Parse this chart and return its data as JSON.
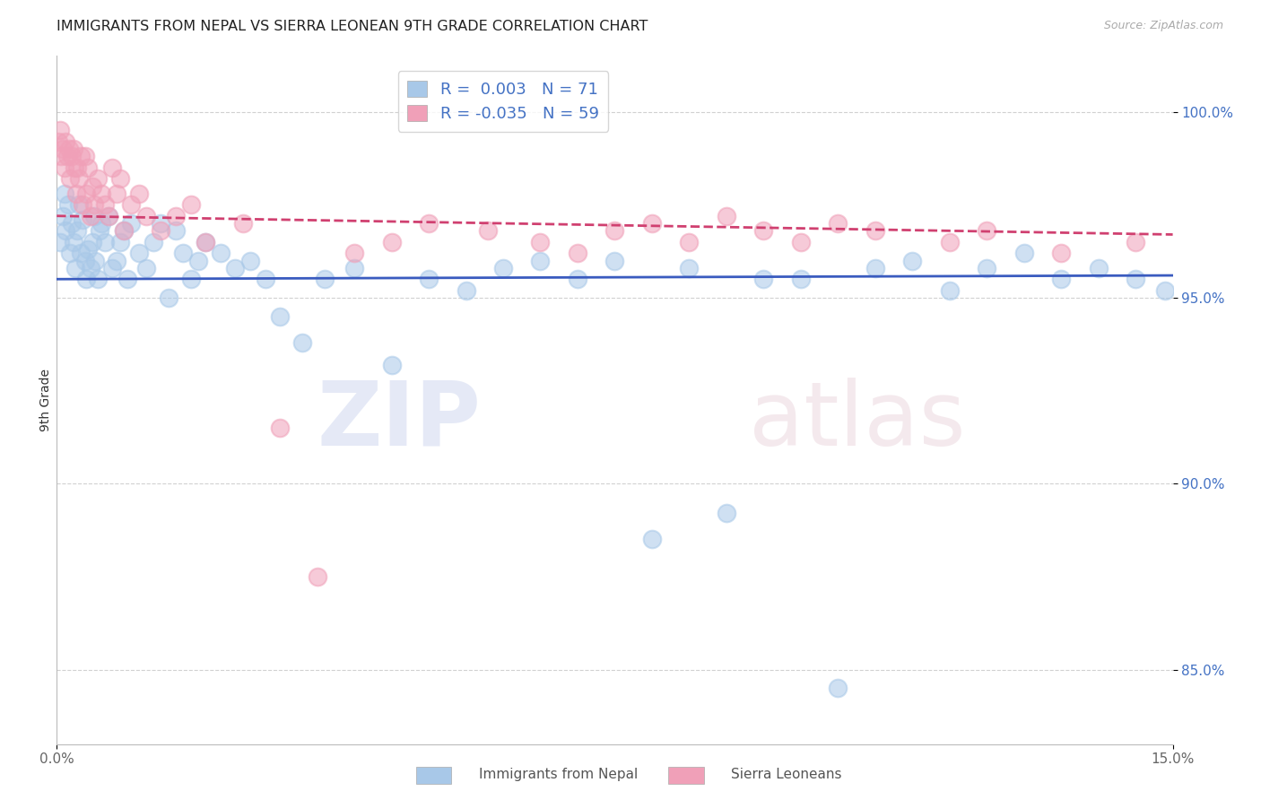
{
  "title": "IMMIGRANTS FROM NEPAL VS SIERRA LEONEAN 9TH GRADE CORRELATION CHART",
  "source_text": "Source: ZipAtlas.com",
  "ylabel": "9th Grade",
  "xlim": [
    0.0,
    15.0
  ],
  "ylim": [
    83.0,
    101.5
  ],
  "x_ticks": [
    0.0,
    15.0
  ],
  "x_tick_labels": [
    "0.0%",
    "15.0%"
  ],
  "y_ticks": [
    85.0,
    90.0,
    95.0,
    100.0
  ],
  "y_tick_labels": [
    "85.0%",
    "90.0%",
    "95.0%",
    "100.0%"
  ],
  "nepal_color": "#a8c8e8",
  "sierra_color": "#f0a0b8",
  "nepal_R": 0.003,
  "nepal_N": 71,
  "sierra_R": -0.035,
  "sierra_N": 59,
  "nepal_line_color": "#3a5bbf",
  "sierra_line_color": "#d04070",
  "legend_label_nepal": "Immigrants from Nepal",
  "legend_label_sierra": "Sierra Leoneans",
  "watermark_zip": "ZIP",
  "watermark_atlas": "atlas",
  "nepal_x": [
    0.05,
    0.08,
    0.1,
    0.12,
    0.15,
    0.18,
    0.2,
    0.22,
    0.25,
    0.28,
    0.3,
    0.32,
    0.35,
    0.38,
    0.4,
    0.42,
    0.45,
    0.48,
    0.5,
    0.52,
    0.55,
    0.58,
    0.6,
    0.65,
    0.7,
    0.75,
    0.8,
    0.85,
    0.9,
    0.95,
    1.0,
    1.1,
    1.2,
    1.3,
    1.4,
    1.5,
    1.6,
    1.7,
    1.8,
    1.9,
    2.0,
    2.2,
    2.4,
    2.6,
    2.8,
    3.0,
    3.3,
    3.6,
    4.0,
    4.5,
    5.0,
    5.5,
    6.0,
    6.5,
    7.0,
    7.5,
    8.0,
    8.5,
    9.0,
    9.5,
    10.0,
    10.5,
    11.0,
    11.5,
    12.0,
    12.5,
    13.0,
    13.5,
    14.0,
    14.5,
    14.9
  ],
  "nepal_y": [
    96.5,
    97.2,
    97.8,
    96.8,
    97.5,
    96.2,
    97.0,
    96.5,
    95.8,
    96.8,
    97.5,
    96.2,
    97.1,
    96.0,
    95.5,
    96.3,
    95.8,
    96.5,
    97.2,
    96.0,
    95.5,
    96.8,
    97.0,
    96.5,
    97.2,
    95.8,
    96.0,
    96.5,
    96.8,
    95.5,
    97.0,
    96.2,
    95.8,
    96.5,
    97.0,
    95.0,
    96.8,
    96.2,
    95.5,
    96.0,
    96.5,
    96.2,
    95.8,
    96.0,
    95.5,
    94.5,
    93.8,
    95.5,
    95.8,
    93.2,
    95.5,
    95.2,
    95.8,
    96.0,
    95.5,
    96.0,
    88.5,
    95.8,
    89.2,
    95.5,
    95.5,
    84.5,
    95.8,
    96.0,
    95.2,
    95.8,
    96.2,
    95.5,
    95.8,
    95.5,
    95.2
  ],
  "sierra_x": [
    0.02,
    0.04,
    0.06,
    0.08,
    0.1,
    0.12,
    0.14,
    0.16,
    0.18,
    0.2,
    0.22,
    0.24,
    0.26,
    0.28,
    0.3,
    0.32,
    0.35,
    0.38,
    0.4,
    0.42,
    0.45,
    0.48,
    0.5,
    0.55,
    0.6,
    0.65,
    0.7,
    0.75,
    0.8,
    0.85,
    0.9,
    1.0,
    1.1,
    1.2,
    1.4,
    1.6,
    1.8,
    2.0,
    2.5,
    3.0,
    3.5,
    4.0,
    4.5,
    5.0,
    5.8,
    6.5,
    7.0,
    7.5,
    8.0,
    8.5,
    9.0,
    9.5,
    10.0,
    10.5,
    11.0,
    12.0,
    12.5,
    13.5,
    14.5
  ],
  "sierra_y": [
    99.2,
    99.5,
    98.8,
    99.0,
    98.5,
    99.2,
    98.8,
    99.0,
    98.2,
    98.8,
    99.0,
    98.5,
    97.8,
    98.5,
    98.2,
    98.8,
    97.5,
    98.8,
    97.8,
    98.5,
    97.2,
    98.0,
    97.5,
    98.2,
    97.8,
    97.5,
    97.2,
    98.5,
    97.8,
    98.2,
    96.8,
    97.5,
    97.8,
    97.2,
    96.8,
    97.2,
    97.5,
    96.5,
    97.0,
    91.5,
    87.5,
    96.2,
    96.5,
    97.0,
    96.8,
    96.5,
    96.2,
    96.8,
    97.0,
    96.5,
    97.2,
    96.8,
    96.5,
    97.0,
    96.8,
    96.5,
    96.8,
    96.2,
    96.5
  ],
  "nepal_trendline_y0": 95.5,
  "nepal_trendline_y1": 95.6,
  "sierra_trendline_y0": 97.2,
  "sierra_trendline_y1": 96.7
}
